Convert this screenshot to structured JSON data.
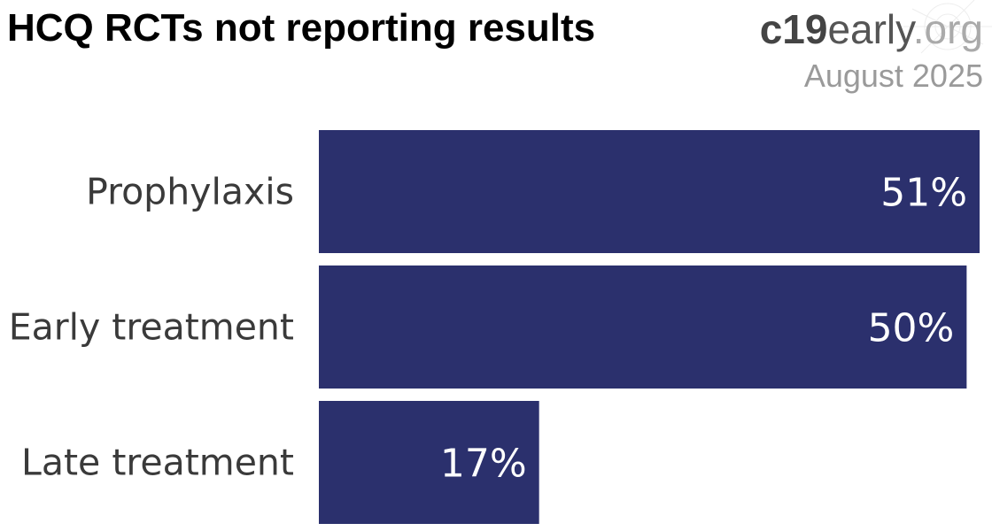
{
  "header": {
    "title": "HCQ RCTs not reporting results",
    "brand_bold": "c19",
    "brand_mid": "early",
    "brand_light": ".org",
    "date": "August 2025"
  },
  "colors": {
    "bar": "#2b306d",
    "bar_label": "#ffffff",
    "category_label": "#3a3a3a"
  },
  "chart_data": {
    "type": "bar",
    "orientation": "horizontal",
    "title": "HCQ RCTs not reporting results",
    "categories": [
      "Prophylaxis",
      "Early treatment",
      "Late treatment"
    ],
    "values": [
      51,
      50,
      17
    ],
    "value_labels": [
      "51%",
      "50%",
      "17%"
    ],
    "unit": "%",
    "xlim": [
      0,
      51
    ],
    "grid": false,
    "legend": "none"
  }
}
